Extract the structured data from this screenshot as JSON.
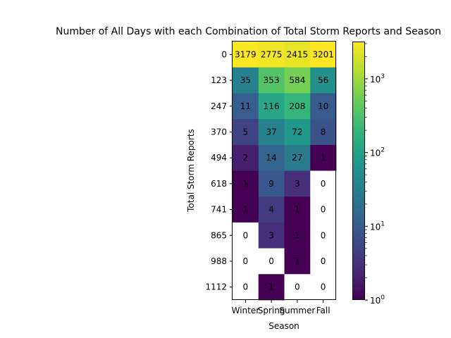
{
  "chart_data": {
    "type": "heatmap",
    "title": "Number of All Days with each Combination of Total Storm Reports and Season",
    "xlabel": "Season",
    "ylabel": "Total Storm Reports",
    "x_categories": [
      "Winter",
      "Spring",
      "Summer",
      "Fall"
    ],
    "y_categories": [
      "0",
      "123",
      "247",
      "370",
      "494",
      "618",
      "741",
      "865",
      "988",
      "1112"
    ],
    "values": [
      [
        3179,
        2775,
        2415,
        3201
      ],
      [
        35,
        353,
        584,
        56
      ],
      [
        11,
        116,
        208,
        10
      ],
      [
        5,
        37,
        72,
        8
      ],
      [
        2,
        14,
        27,
        1
      ],
      [
        1,
        9,
        3,
        0
      ],
      [
        1,
        4,
        1,
        0
      ],
      [
        0,
        3,
        1,
        0
      ],
      [
        0,
        0,
        1,
        0
      ],
      [
        0,
        1,
        0,
        0
      ]
    ],
    "colorscale": "viridis",
    "color_scale_type": "log",
    "zero_color": "#ffffff",
    "colorbar": {
      "range": [
        1,
        3201
      ],
      "major_ticks": [
        1,
        10,
        100,
        1000
      ],
      "tick_labels": [
        "10^0",
        "10^1",
        "10^2",
        "10^3"
      ]
    }
  }
}
